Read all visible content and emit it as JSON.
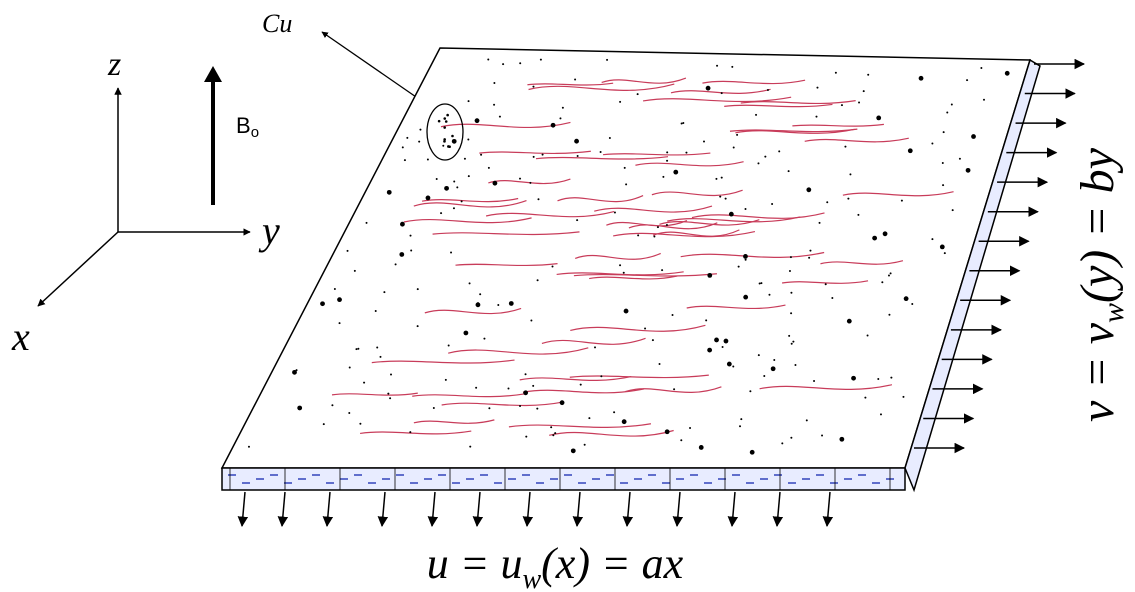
{
  "axes": {
    "z": "z",
    "y": "y",
    "x": "x"
  },
  "magnetic_field": {
    "symbol": "B",
    "subscript": "o"
  },
  "particle_label": "Cu",
  "equations": {
    "bottom": {
      "before": "u = u",
      "subscript": "w",
      "after": "(x) = ax"
    },
    "right": {
      "before": "v = v",
      "subscript": "w",
      "after": "(y) = by"
    }
  }
}
